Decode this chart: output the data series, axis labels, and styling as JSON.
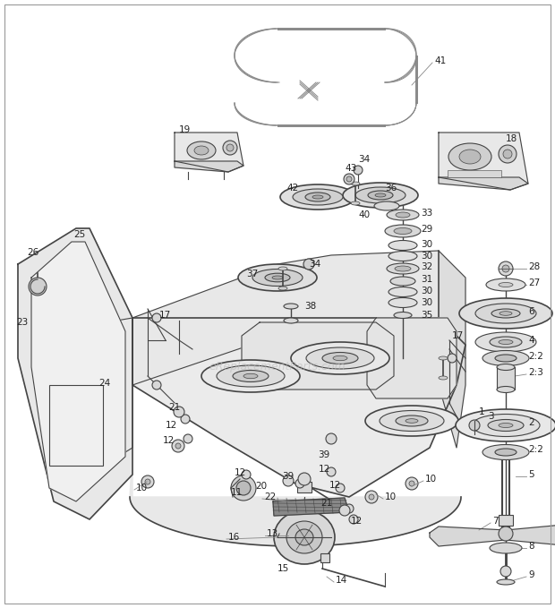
{
  "bg_color": "#ffffff",
  "line_color": "#444444",
  "text_color": "#222222",
  "watermark": "eReplacementParts.com",
  "watermark_color": "#bbbbbb",
  "belt_color": "#666666",
  "part_color": "#eeeeee",
  "shadow_color": "#cccccc"
}
